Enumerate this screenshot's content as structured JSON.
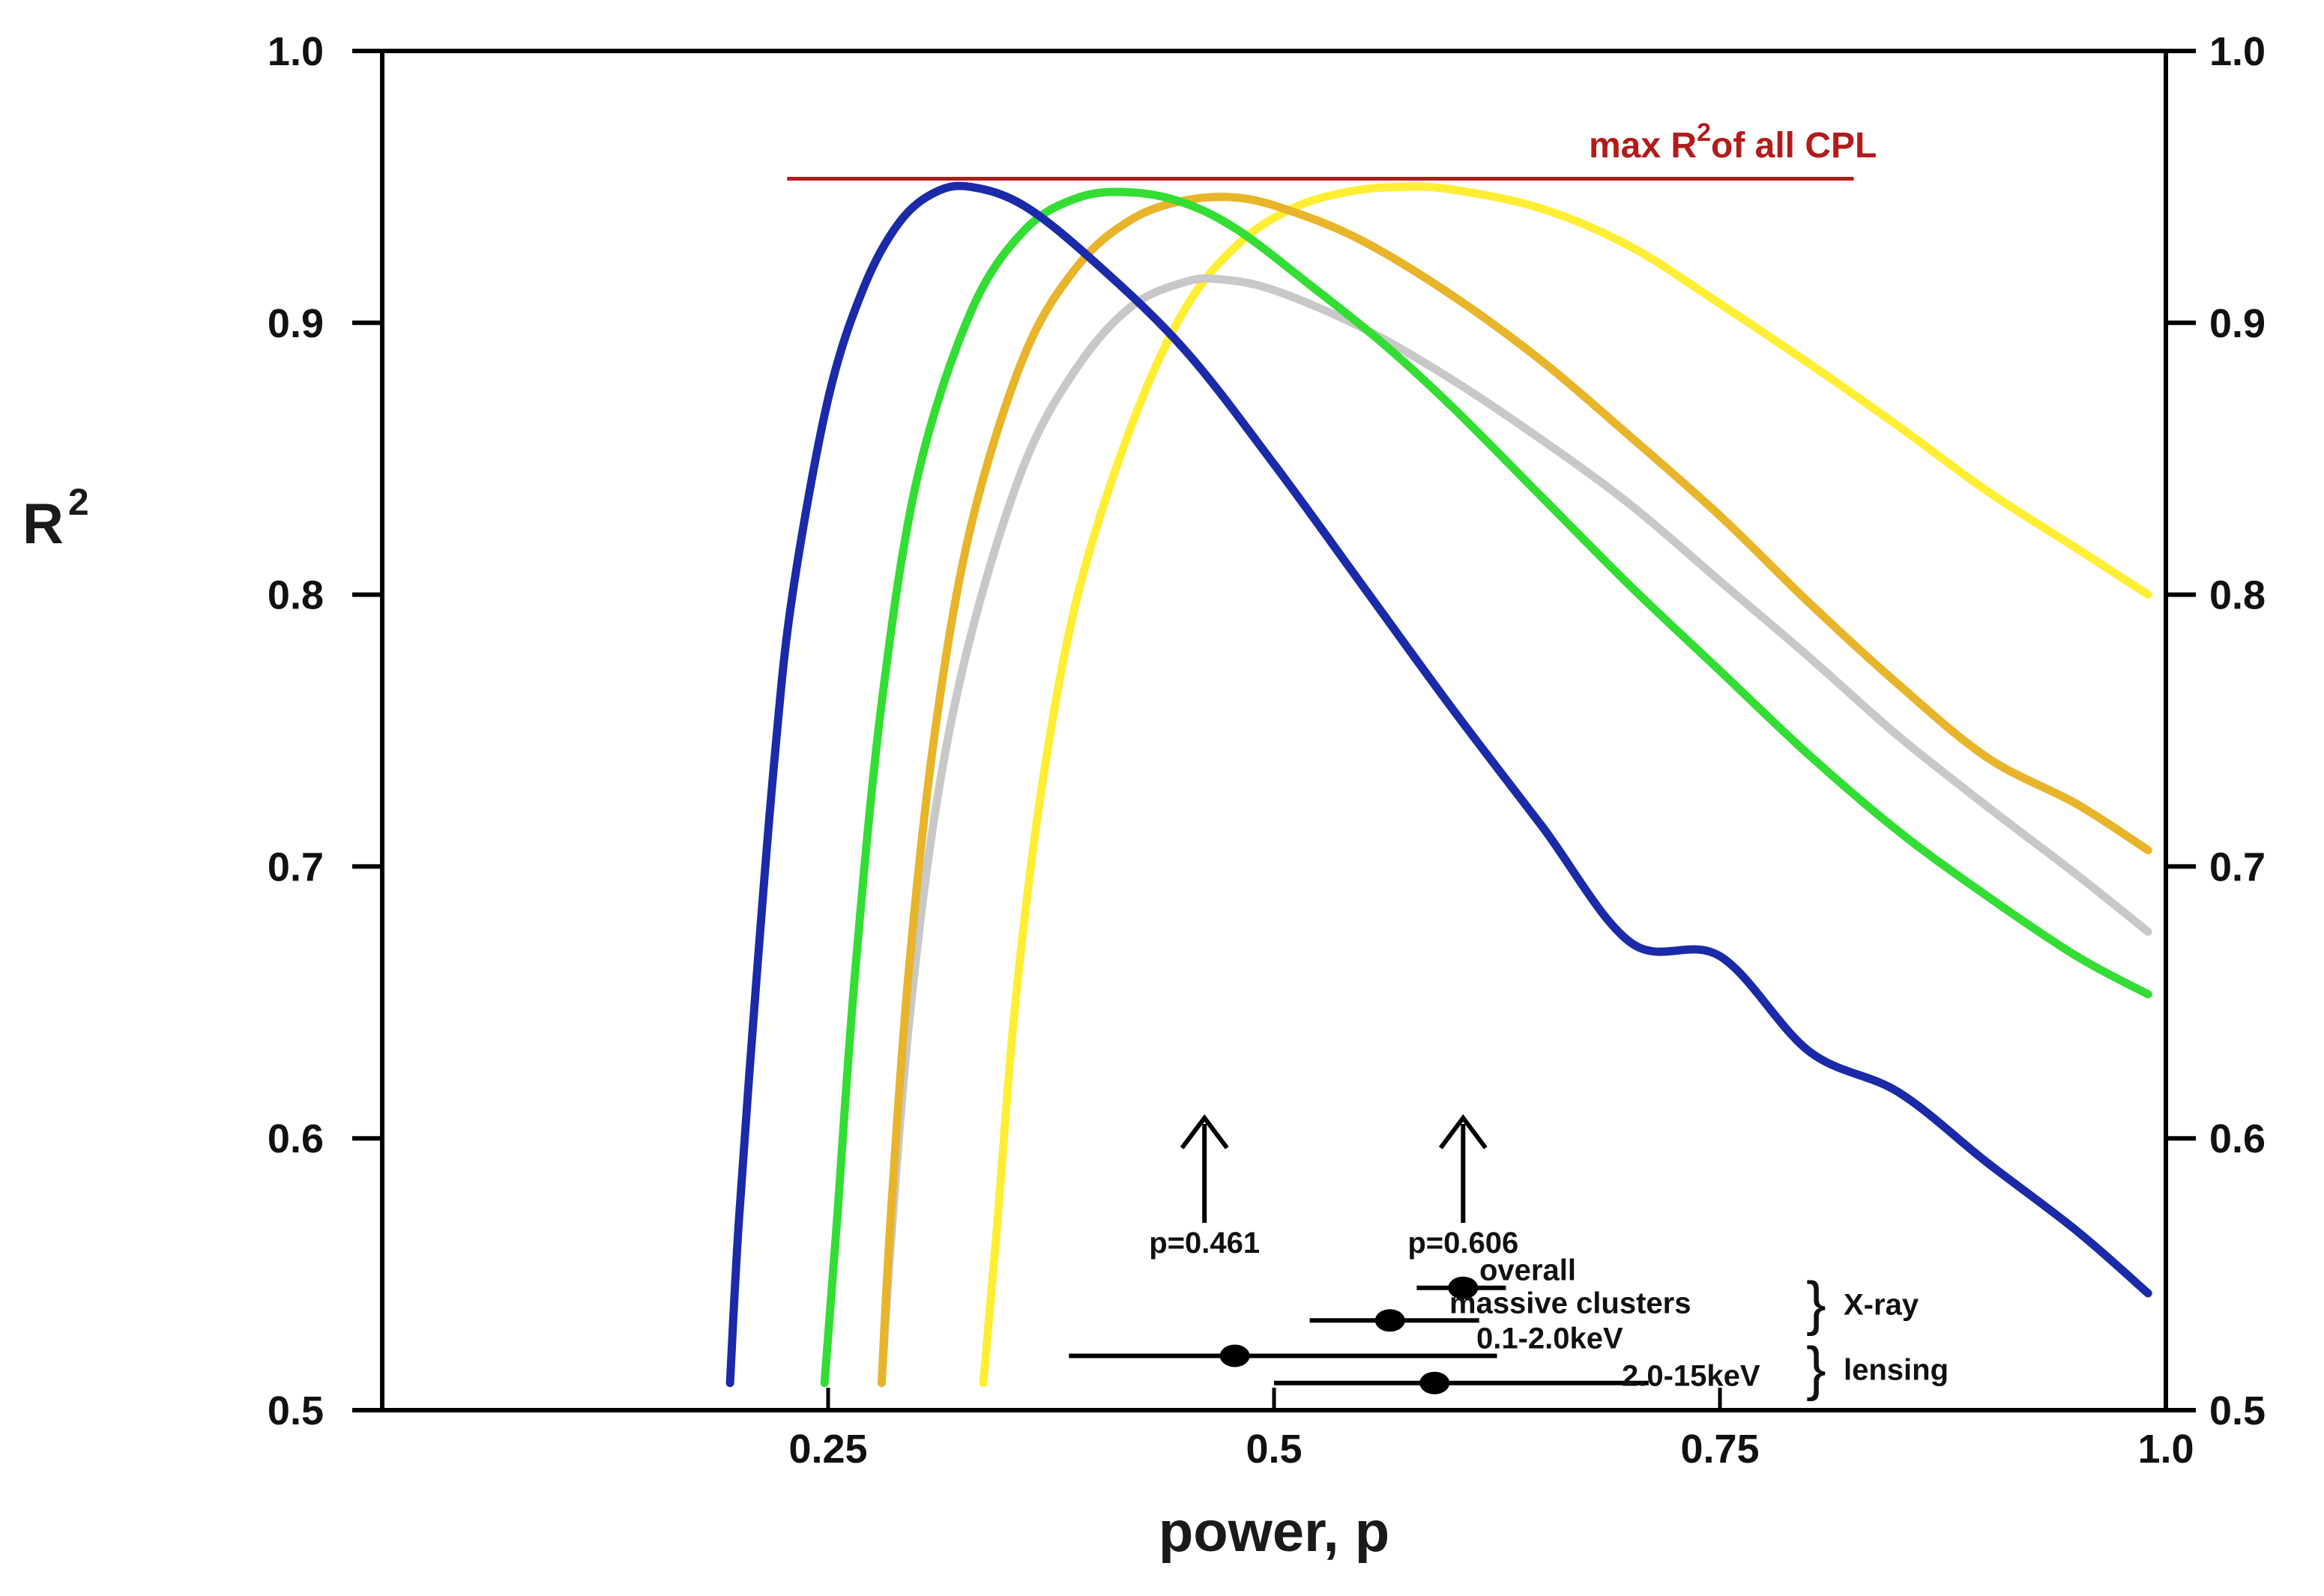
{
  "chart_data": {
    "type": "line",
    "title": "",
    "xlabel": "power,  p",
    "ylabel": "R",
    "ylabel_superscript": "2",
    "xlim": [
      0.0,
      1.0
    ],
    "ylim": [
      0.5,
      1.0
    ],
    "x_ticks": [
      {
        "value": 0.25,
        "label": "0.25"
      },
      {
        "value": 0.5,
        "label": "0.5"
      },
      {
        "value": 0.75,
        "label": "0.75"
      },
      {
        "value": 1.0,
        "label": "1.0"
      }
    ],
    "y_ticks": [
      {
        "value": 0.5,
        "label": "0.5"
      },
      {
        "value": 0.6,
        "label": "0.6"
      },
      {
        "value": 0.7,
        "label": "0.7"
      },
      {
        "value": 0.8,
        "label": "0.8"
      },
      {
        "value": 0.9,
        "label": "0.9"
      },
      {
        "value": 1.0,
        "label": "1.0"
      }
    ],
    "grid": false,
    "series": [
      {
        "name": "blue",
        "color": "#1a2aa8",
        "x": [
          0.195,
          0.2,
          0.21,
          0.22,
          0.23,
          0.25,
          0.27,
          0.29,
          0.31,
          0.33,
          0.36,
          0.4,
          0.45,
          0.5,
          0.55,
          0.6,
          0.65,
          0.7,
          0.75,
          0.8,
          0.85,
          0.9,
          0.95,
          0.99
        ],
        "y": [
          0.51,
          0.57,
          0.66,
          0.74,
          0.8,
          0.872,
          0.913,
          0.937,
          0.948,
          0.95,
          0.943,
          0.922,
          0.89,
          0.848,
          0.803,
          0.758,
          0.715,
          0.672,
          0.667,
          0.632,
          0.617,
          0.591,
          0.566,
          0.543
        ]
      },
      {
        "name": "green",
        "color": "#33dd33",
        "x": [
          0.248,
          0.255,
          0.265,
          0.28,
          0.3,
          0.33,
          0.36,
          0.39,
          0.42,
          0.45,
          0.48,
          0.52,
          0.56,
          0.6,
          0.65,
          0.7,
          0.75,
          0.8,
          0.85,
          0.9,
          0.95,
          0.99
        ],
        "y": [
          0.51,
          0.57,
          0.66,
          0.76,
          0.843,
          0.904,
          0.934,
          0.946,
          0.948,
          0.944,
          0.934,
          0.914,
          0.893,
          0.869,
          0.836,
          0.803,
          0.772,
          0.741,
          0.713,
          0.689,
          0.667,
          0.653
        ]
      },
      {
        "name": "gray",
        "color": "#c8c8c8",
        "x": [
          0.28,
          0.285,
          0.295,
          0.31,
          0.33,
          0.36,
          0.39,
          0.42,
          0.45,
          0.47,
          0.5,
          0.55,
          0.6,
          0.65,
          0.7,
          0.75,
          0.8,
          0.85,
          0.9,
          0.95,
          0.99
        ],
        "y": [
          0.51,
          0.56,
          0.64,
          0.72,
          0.785,
          0.848,
          0.884,
          0.906,
          0.915,
          0.916,
          0.912,
          0.898,
          0.879,
          0.857,
          0.833,
          0.805,
          0.777,
          0.748,
          0.722,
          0.697,
          0.676
        ]
      },
      {
        "name": "orange",
        "color": "#e8b42a",
        "x": [
          0.28,
          0.285,
          0.295,
          0.31,
          0.33,
          0.36,
          0.39,
          0.42,
          0.45,
          0.48,
          0.51,
          0.55,
          0.6,
          0.65,
          0.7,
          0.75,
          0.8,
          0.85,
          0.9,
          0.95,
          0.99
        ],
        "y": [
          0.51,
          0.57,
          0.66,
          0.75,
          0.825,
          0.888,
          0.921,
          0.938,
          0.945,
          0.946,
          0.941,
          0.93,
          0.91,
          0.886,
          0.858,
          0.829,
          0.797,
          0.767,
          0.74,
          0.723,
          0.706
        ]
      },
      {
        "name": "yellow",
        "color": "#ffee33",
        "x": [
          0.337,
          0.345,
          0.355,
          0.37,
          0.39,
          0.42,
          0.45,
          0.48,
          0.51,
          0.54,
          0.57,
          0.6,
          0.65,
          0.7,
          0.75,
          0.8,
          0.85,
          0.9,
          0.95,
          0.99
        ],
        "y": [
          0.51,
          0.57,
          0.65,
          0.73,
          0.8,
          0.862,
          0.905,
          0.929,
          0.942,
          0.948,
          0.95,
          0.949,
          0.942,
          0.928,
          0.907,
          0.885,
          0.862,
          0.838,
          0.817,
          0.8
        ]
      }
    ],
    "max_line": {
      "label": "max R",
      "label_superscript": "2",
      "label_suffix": "of all CPL",
      "value": 0.953,
      "x_start": 0.227,
      "x_end": 0.825,
      "color": "#b31b1b"
    },
    "arrows": [
      {
        "label": "p=0.461",
        "x": 0.461
      },
      {
        "label": "p=0.606",
        "x": 0.606
      }
    ],
    "error_bars": [
      {
        "label": "overall",
        "x": 0.606,
        "xmin": 0.58,
        "xmax": 0.63,
        "y": 0.545
      },
      {
        "label": "massive clusters",
        "x": 0.565,
        "xmin": 0.52,
        "xmax": 0.615,
        "y": 0.533
      },
      {
        "label": "0.1-2.0keV",
        "x": 0.478,
        "xmin": 0.385,
        "xmax": 0.625,
        "y": 0.52
      },
      {
        "label": "2.0-15keV",
        "x": 0.59,
        "xmin": 0.5,
        "xmax": 0.71,
        "y": 0.51
      }
    ],
    "groups": [
      {
        "label": "X-ray"
      },
      {
        "label": "lensing"
      }
    ]
  }
}
